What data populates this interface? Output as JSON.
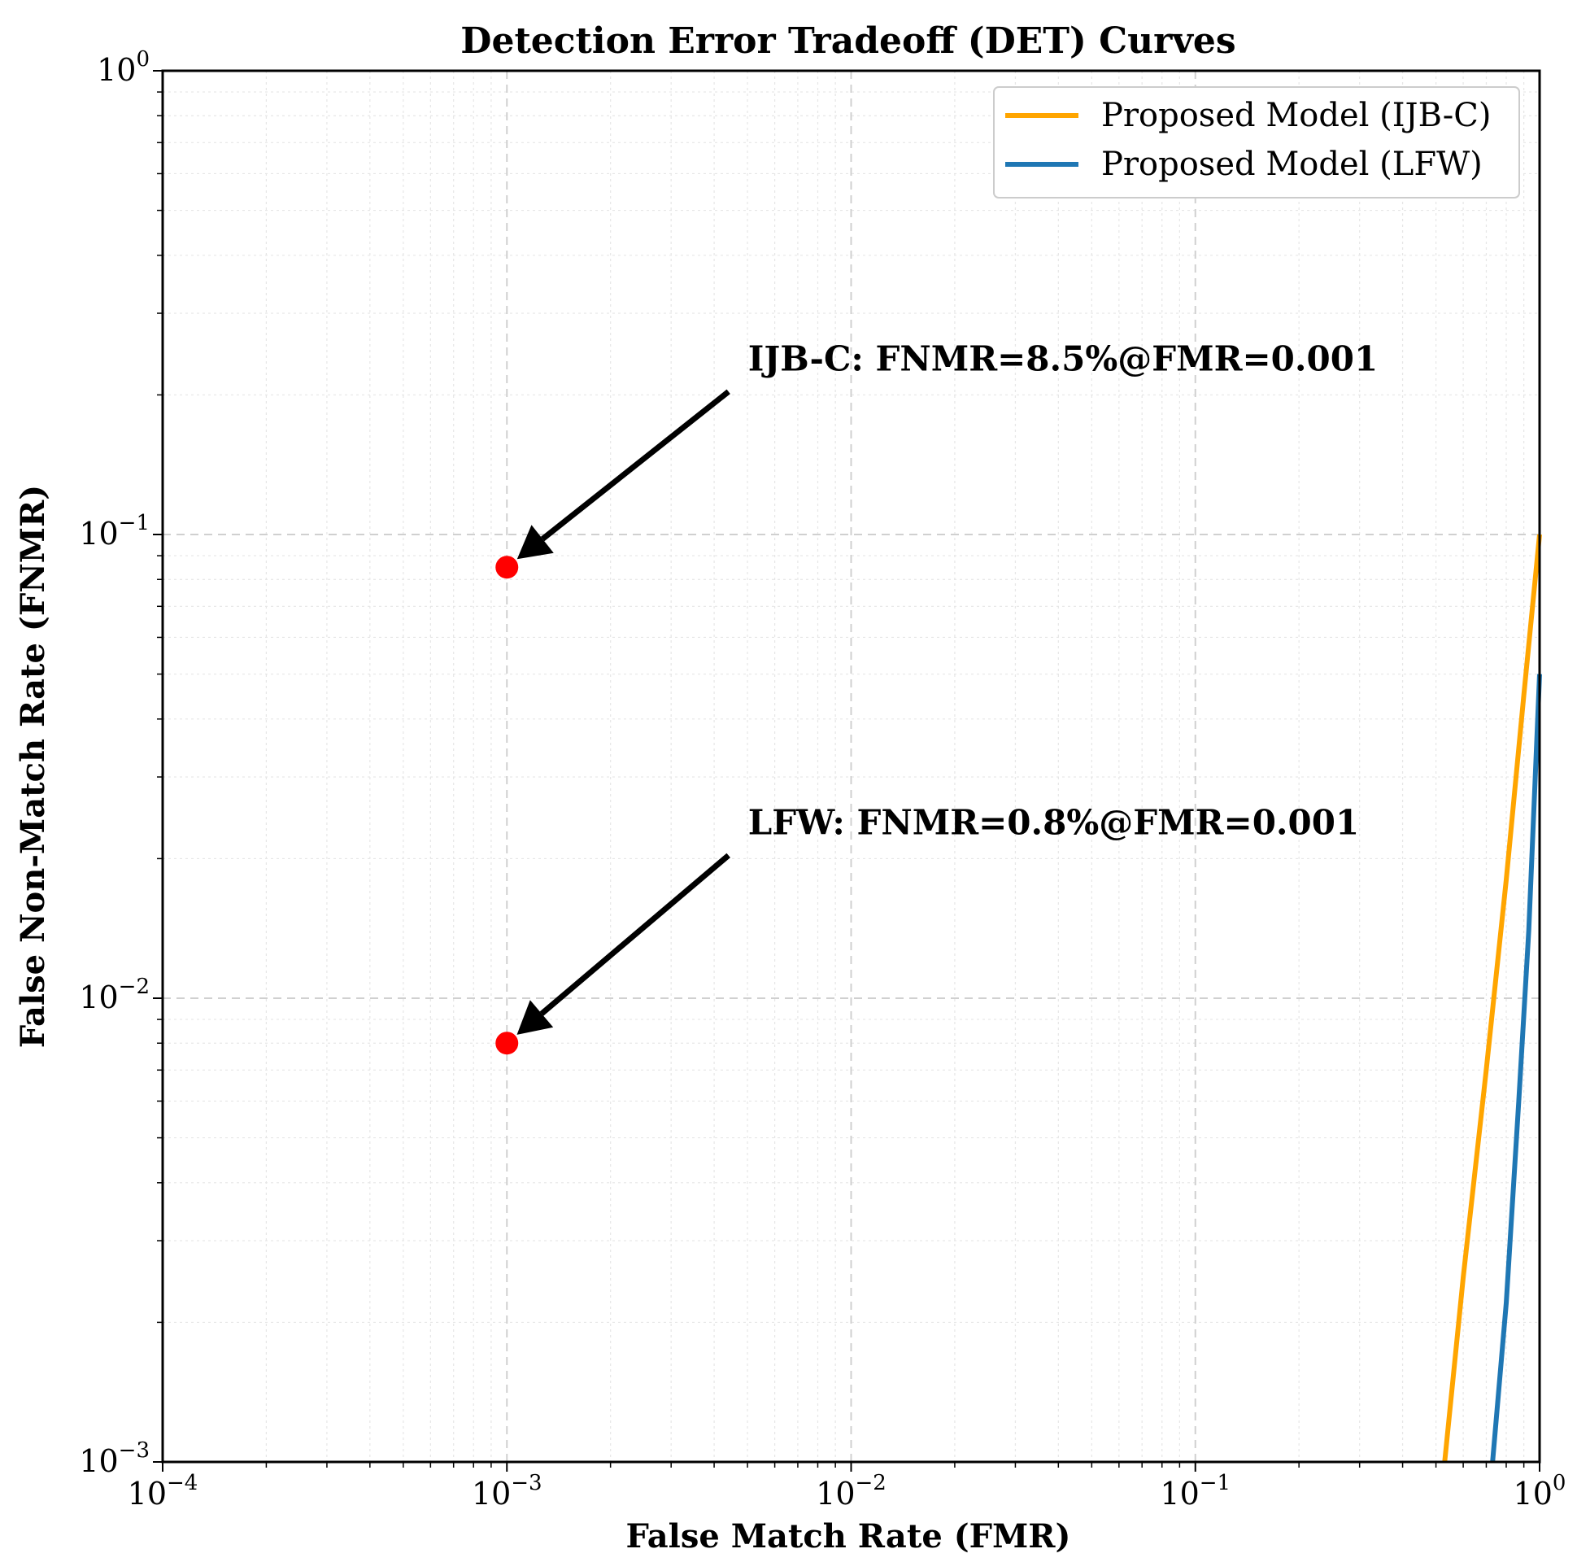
{
  "chart_data": {
    "type": "line",
    "title": "Detection Error Tradeoff (DET) Curves",
    "xlabel": "False Match Rate (FMR)",
    "ylabel": "False Non-Match Rate (FNMR)",
    "xscale": "log",
    "yscale": "log",
    "xlim": [
      0.0001,
      1
    ],
    "ylim": [
      0.001,
      1
    ],
    "grid": true,
    "legend_position": "top-right",
    "x_ticks": [
      {
        "value": 0.0001,
        "base": "10",
        "exp": "−4"
      },
      {
        "value": 0.001,
        "base": "10",
        "exp": "−3"
      },
      {
        "value": 0.01,
        "base": "10",
        "exp": "−2"
      },
      {
        "value": 0.1,
        "base": "10",
        "exp": "−1"
      },
      {
        "value": 1,
        "base": "10",
        "exp": "0"
      }
    ],
    "y_ticks": [
      {
        "value": 0.001,
        "base": "10",
        "exp": "−3"
      },
      {
        "value": 0.01,
        "base": "10",
        "exp": "−2"
      },
      {
        "value": 0.1,
        "base": "10",
        "exp": "−1"
      },
      {
        "value": 1,
        "base": "10",
        "exp": "0"
      }
    ],
    "series": [
      {
        "name": "Proposed Model (IJB-C)",
        "color": "#FFA500",
        "x": [
          0.53,
          0.6,
          0.7,
          0.8,
          0.9,
          1.0
        ],
        "y": [
          0.001,
          0.0025,
          0.007,
          0.018,
          0.045,
          0.1
        ]
      },
      {
        "name": "Proposed Model (LFW)",
        "color": "#1F77B4",
        "x": [
          0.73,
          0.8,
          0.87,
          0.93,
          1.0
        ],
        "y": [
          0.001,
          0.0022,
          0.006,
          0.014,
          0.05
        ]
      }
    ],
    "points": [
      {
        "name": "IJB-C",
        "x": 0.001,
        "y": 0.085,
        "color": "#FF0000"
      },
      {
        "name": "LFW",
        "x": 0.001,
        "y": 0.008,
        "color": "#FF0000"
      }
    ],
    "annotations": [
      {
        "text": "IJB-C: FNMR=8.5%@FMR=0.001",
        "target_x": 0.001,
        "target_y": 0.085,
        "text_x": 0.0045,
        "text_y": 0.2
      },
      {
        "text": "LFW: FNMR=0.8%@FMR=0.001",
        "target_x": 0.001,
        "target_y": 0.008,
        "text_x": 0.0045,
        "text_y": 0.02
      }
    ]
  }
}
